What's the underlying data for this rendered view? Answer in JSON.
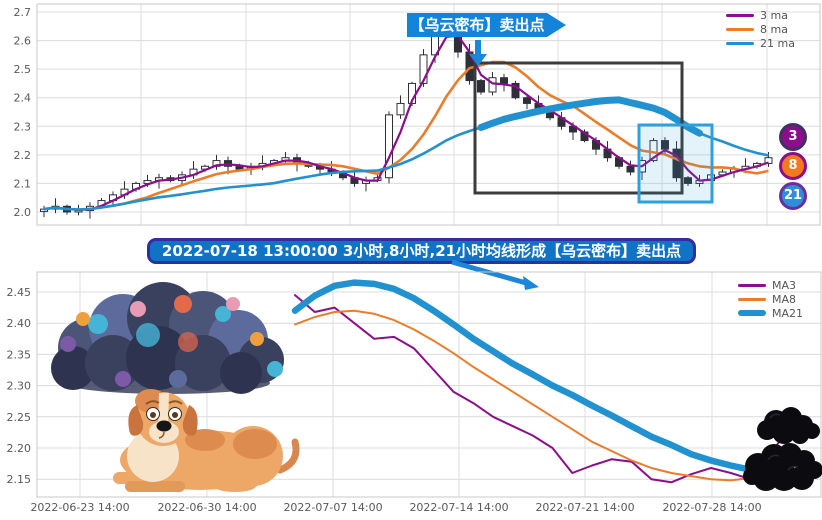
{
  "annotations": {
    "top_banner": {
      "text": "【乌云密布】卖出点",
      "bg": "#1484DA",
      "text_color": "#FFFFFF"
    },
    "event_banner": {
      "text": "2022-07-18 13:00:00 3小时,8小时,21小时均线形成【乌云密布】卖出点",
      "bg": "#1173C5",
      "border": "#332D9E",
      "text_color": "#FFFFFF"
    },
    "arrow_color": "#1C86D8"
  },
  "decorations": {
    "items": [
      "storm-cloud-illustration",
      "dog-illustration",
      "black-clouds-illustration"
    ]
  },
  "chart_data": [
    {
      "type": "candlestick",
      "title": "",
      "ylim": [
        2.0,
        2.7
      ],
      "yticks": [
        2.0,
        2.1,
        2.2,
        2.3,
        2.4,
        2.5,
        2.6,
        2.7
      ],
      "grid": true,
      "legend_position": "upper right",
      "legend": [
        {
          "label": "3 ma",
          "color": "#8B0E8B",
          "thick": false
        },
        {
          "label": "8 ma",
          "color": "#E97D2C",
          "thick": false
        },
        {
          "label": "21 ma",
          "color": "#2191D0",
          "thick": false
        }
      ],
      "candle_color": "#2F2F3A",
      "close": [
        2.01,
        2.02,
        2.0,
        2.005,
        2.02,
        2.04,
        2.06,
        2.08,
        2.1,
        2.11,
        2.12,
        2.11,
        2.13,
        2.15,
        2.16,
        2.18,
        2.16,
        2.15,
        2.16,
        2.17,
        2.18,
        2.19,
        2.17,
        2.16,
        2.15,
        2.14,
        2.12,
        2.1,
        2.11,
        2.12,
        2.34,
        2.38,
        2.45,
        2.55,
        2.63,
        2.66,
        2.56,
        2.46,
        2.42,
        2.47,
        2.45,
        2.4,
        2.38,
        2.36,
        2.33,
        2.3,
        2.28,
        2.25,
        2.22,
        2.19,
        2.16,
        2.14,
        2.18,
        2.25,
        2.22,
        2.12,
        2.1,
        2.11,
        2.13,
        2.14,
        2.15,
        2.16,
        2.17,
        2.19
      ],
      "moving_averages": [
        {
          "window": 3,
          "color": "#8B0E8B",
          "width": 2.2
        },
        {
          "window": 8,
          "color": "#E97D2C",
          "width": 2.6
        },
        {
          "window": 21,
          "color": "#2191D0",
          "width": 2.6
        }
      ],
      "emphasis_color": "#2191D0",
      "highlight_boxes": [
        {
          "name": "decline-highlight-box",
          "stroke": "#3C3C3C",
          "fill": "none"
        },
        {
          "name": "bounce-highlight-box",
          "stroke": "#2FA0DC",
          "fill": "rgba(47,160,220,0.13)"
        }
      ],
      "badges": [
        {
          "label": "3",
          "bg": "#8B0E8B",
          "ring": "#433064"
        },
        {
          "label": "8",
          "bg": "#F2791C",
          "ring": "#8B0E8B"
        },
        {
          "label": "21",
          "bg": "#2D8FD9",
          "ring": "#6A2F9E"
        }
      ]
    },
    {
      "type": "line",
      "title": "",
      "ylim": [
        2.12,
        2.47
      ],
      "yticks": [
        2.15,
        2.2,
        2.25,
        2.3,
        2.35,
        2.4,
        2.45
      ],
      "ytick_labels": [
        "2.15",
        "2.20",
        "2.25",
        "2.30",
        "2.35",
        "2.40",
        "2.45"
      ],
      "x_ticklabels": [
        "2022-06-23 14:00",
        "2022-06-30 14:00",
        "2022-07-07 14:00",
        "2022-07-14 14:00",
        "2022-07-21 14:00",
        "2022-07-28 14:00"
      ],
      "grid": true,
      "legend_position": "upper right",
      "legend": [
        {
          "label": "MA3",
          "color": "#8B0E8B",
          "thick": false
        },
        {
          "label": "MA8",
          "color": "#E97D2C",
          "thick": false
        },
        {
          "label": "MA21",
          "color": "#2191D0",
          "thick": true
        }
      ],
      "series": [
        {
          "name": "MA3",
          "color": "#8B0E8B",
          "width": 2,
          "values": [
            2.445,
            2.418,
            2.425,
            2.4,
            2.375,
            2.378,
            2.36,
            2.325,
            2.29,
            2.272,
            2.25,
            2.235,
            2.22,
            2.2,
            2.16,
            2.172,
            2.182,
            2.178,
            2.15,
            2.145,
            2.158,
            2.168,
            2.16,
            2.15,
            2.19,
            2.235,
            2.243
          ]
        },
        {
          "name": "MA8",
          "color": "#E97D2C",
          "width": 2,
          "values": [
            2.398,
            2.41,
            2.418,
            2.42,
            2.415,
            2.405,
            2.39,
            2.372,
            2.352,
            2.33,
            2.31,
            2.29,
            2.27,
            2.25,
            2.23,
            2.21,
            2.195,
            2.18,
            2.168,
            2.16,
            2.155,
            2.15,
            2.148,
            2.152,
            2.158,
            2.163,
            2.17
          ]
        },
        {
          "name": "MA21",
          "color": "#2191D0",
          "width": 6.5,
          "values": [
            2.42,
            2.444,
            2.46,
            2.465,
            2.463,
            2.455,
            2.44,
            2.42,
            2.398,
            2.375,
            2.355,
            2.335,
            2.318,
            2.3,
            2.285,
            2.268,
            2.252,
            2.235,
            2.218,
            2.205,
            2.19,
            2.18,
            2.172,
            2.165,
            2.16,
            2.158,
            2.157
          ]
        }
      ]
    }
  ]
}
